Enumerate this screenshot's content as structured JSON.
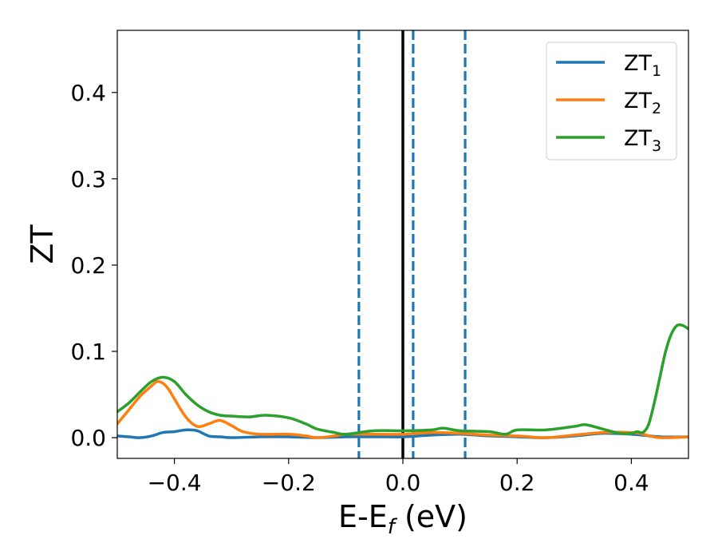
{
  "chart_data": {
    "type": "line",
    "xlabel_main": "E-E",
    "xlabel_sub": "f",
    "xlabel_unit": " (eV)",
    "ylabel": "ZT",
    "xlim": [
      -0.5,
      0.5
    ],
    "ylim": [
      -0.024,
      0.472
    ],
    "xticks": [
      -0.4,
      -0.2,
      0.0,
      0.2,
      0.4
    ],
    "xtick_labels": [
      "−0.4",
      "−0.2",
      "0.0",
      "0.2",
      "0.4"
    ],
    "yticks": [
      0.0,
      0.1,
      0.2,
      0.3,
      0.4
    ],
    "ytick_labels": [
      "0.0",
      "0.1",
      "0.2",
      "0.3",
      "0.4"
    ],
    "grid": false,
    "legend_position": "top-right",
    "vlines": [
      {
        "x": 0.0,
        "style": "solid",
        "color": "#000000"
      },
      {
        "x": -0.077,
        "style": "dashed",
        "color": "#1f77b4"
      },
      {
        "x": 0.018,
        "style": "dashed",
        "color": "#1f77b4"
      },
      {
        "x": 0.109,
        "style": "dashed",
        "color": "#1f77b4"
      }
    ],
    "series": [
      {
        "name": "ZT",
        "sub": "1",
        "color": "#1f77b4",
        "x": [
          -0.5,
          -0.48,
          -0.46,
          -0.44,
          -0.42,
          -0.4,
          -0.38,
          -0.36,
          -0.34,
          -0.32,
          -0.3,
          -0.25,
          -0.2,
          -0.15,
          -0.1,
          -0.05,
          0.0,
          0.05,
          0.1,
          0.15,
          0.2,
          0.25,
          0.3,
          0.35,
          0.4,
          0.45,
          0.5
        ],
        "y": [
          0.002,
          0.001,
          0.0,
          0.002,
          0.006,
          0.007,
          0.009,
          0.008,
          0.002,
          0.001,
          0.0,
          0.001,
          0.001,
          0.0,
          0.001,
          0.001,
          0.001,
          0.003,
          0.004,
          0.002,
          0.001,
          0.0,
          0.002,
          0.005,
          0.004,
          0.001,
          0.001
        ]
      },
      {
        "name": "ZT",
        "sub": "2",
        "color": "#ff7f0e",
        "x": [
          -0.5,
          -0.48,
          -0.46,
          -0.44,
          -0.43,
          -0.42,
          -0.41,
          -0.4,
          -0.38,
          -0.36,
          -0.34,
          -0.32,
          -0.3,
          -0.28,
          -0.25,
          -0.2,
          -0.17,
          -0.15,
          -0.12,
          -0.1,
          -0.05,
          0.0,
          0.05,
          0.1,
          0.15,
          0.2,
          0.25,
          0.3,
          0.35,
          0.4,
          0.42,
          0.45,
          0.5
        ],
        "y": [
          0.016,
          0.032,
          0.048,
          0.06,
          0.065,
          0.063,
          0.056,
          0.045,
          0.024,
          0.013,
          0.016,
          0.02,
          0.014,
          0.007,
          0.004,
          0.004,
          0.002,
          0.0,
          0.002,
          0.004,
          0.004,
          0.004,
          0.006,
          0.005,
          0.003,
          0.002,
          0.0,
          0.003,
          0.006,
          0.006,
          0.004,
          0.0,
          0.001
        ]
      },
      {
        "name": "ZT",
        "sub": "3",
        "color": "#2ca02c",
        "x": [
          -0.5,
          -0.48,
          -0.46,
          -0.44,
          -0.42,
          -0.4,
          -0.38,
          -0.36,
          -0.34,
          -0.32,
          -0.3,
          -0.27,
          -0.24,
          -0.2,
          -0.17,
          -0.15,
          -0.12,
          -0.1,
          -0.05,
          0.0,
          0.05,
          0.07,
          0.1,
          0.15,
          0.18,
          0.2,
          0.25,
          0.3,
          0.32,
          0.35,
          0.38,
          0.4,
          0.41,
          0.42,
          0.43,
          0.44,
          0.45,
          0.46,
          0.47,
          0.48,
          0.49,
          0.5
        ],
        "y": [
          0.03,
          0.04,
          0.053,
          0.065,
          0.07,
          0.065,
          0.05,
          0.038,
          0.03,
          0.026,
          0.025,
          0.024,
          0.026,
          0.023,
          0.016,
          0.01,
          0.006,
          0.004,
          0.008,
          0.008,
          0.009,
          0.011,
          0.008,
          0.007,
          0.004,
          0.009,
          0.009,
          0.013,
          0.015,
          0.01,
          0.005,
          0.005,
          0.007,
          0.006,
          0.015,
          0.04,
          0.07,
          0.1,
          0.12,
          0.13,
          0.13,
          0.126
        ]
      }
    ]
  }
}
